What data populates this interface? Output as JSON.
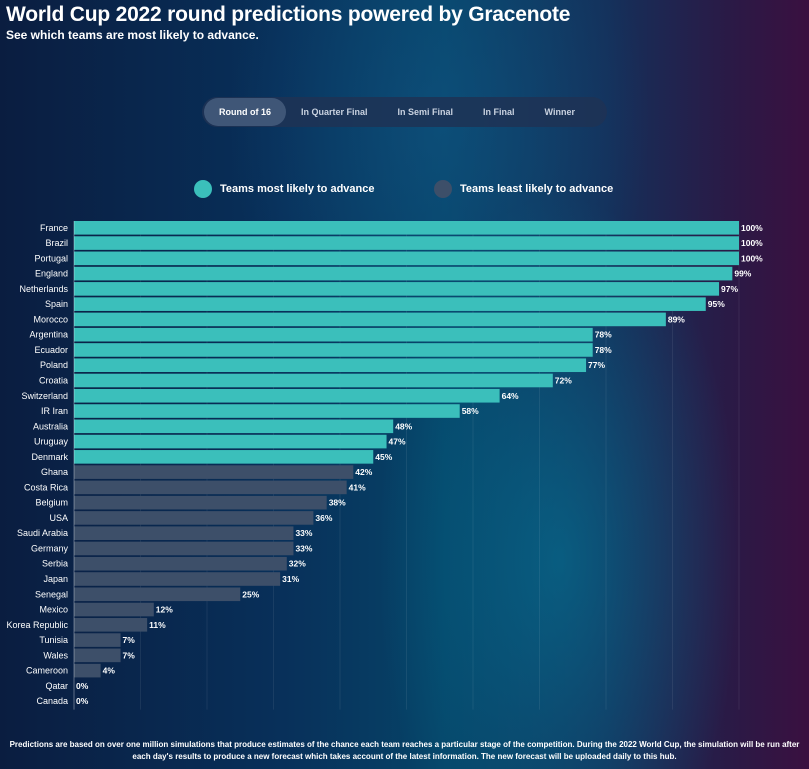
{
  "header": {
    "title": "World Cup 2022 round predictions powered by Gracenote",
    "subtitle": "See which teams are most likely to advance."
  },
  "tabs": [
    {
      "label": "Round of 16",
      "active": true
    },
    {
      "label": "In Quarter Final",
      "active": false
    },
    {
      "label": "In Semi Final",
      "active": false
    },
    {
      "label": "In Final",
      "active": false
    },
    {
      "label": "Winner",
      "active": false
    }
  ],
  "legend": {
    "most": {
      "label": "Teams most likely to advance",
      "color": "#3bbfbb"
    },
    "least": {
      "label": "Teams least likely to advance",
      "color": "#3d4f69"
    }
  },
  "chart_data": {
    "type": "bar",
    "orientation": "horizontal",
    "title": "Round of 16",
    "xlim": [
      0,
      100
    ],
    "value_suffix": "%",
    "categories": [
      "France",
      "Brazil",
      "Portugal",
      "England",
      "Netherlands",
      "Spain",
      "Morocco",
      "Argentina",
      "Ecuador",
      "Poland",
      "Croatia",
      "Switzerland",
      "IR Iran",
      "Australia",
      "Uruguay",
      "Denmark",
      "Ghana",
      "Costa Rica",
      "Belgium",
      "USA",
      "Saudi Arabia",
      "Germany",
      "Serbia",
      "Japan",
      "Senegal",
      "Mexico",
      "Korea Republic",
      "Tunisia",
      "Wales",
      "Cameroon",
      "Qatar",
      "Canada"
    ],
    "values": [
      100,
      100,
      100,
      99,
      97,
      95,
      89,
      78,
      78,
      77,
      72,
      64,
      58,
      48,
      47,
      45,
      42,
      41,
      38,
      36,
      33,
      33,
      32,
      31,
      25,
      12,
      11,
      7,
      7,
      4,
      0,
      0
    ],
    "groups": [
      "most",
      "most",
      "most",
      "most",
      "most",
      "most",
      "most",
      "most",
      "most",
      "most",
      "most",
      "most",
      "most",
      "most",
      "most",
      "most",
      "least",
      "least",
      "least",
      "least",
      "least",
      "least",
      "least",
      "least",
      "least",
      "least",
      "least",
      "least",
      "least",
      "least",
      "least",
      "least"
    ]
  },
  "footer": {
    "text": "Predictions are based on over one million simulations that produce estimates of the chance each team reaches a particular stage of the competition. During the 2022 World Cup, the simulation will be run after each day's results to produce a new forecast which takes account of the latest information. The new forecast will be uploaded daily to this hub."
  }
}
